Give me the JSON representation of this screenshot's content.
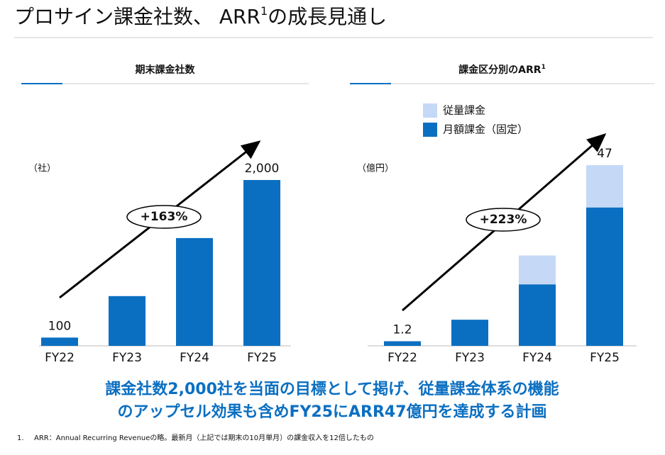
{
  "slide_title": {
    "before": "プロサイン課金社数、 ARR",
    "sup": "1",
    "after": "の成長見通し"
  },
  "chart_data": [
    {
      "type": "bar",
      "title": "期末課金社数",
      "unit": "（社）",
      "growth": "+163%",
      "categories": [
        "FY22",
        "FY23",
        "FY24",
        "FY25"
      ],
      "values": [
        100,
        600,
        1300,
        2000
      ],
      "value_labels": [
        "100",
        null,
        null,
        "2,000"
      ],
      "color": "#0b6fc1",
      "ylim": [
        0,
        2000
      ]
    },
    {
      "type": "stacked_bar",
      "title": "課金区分別のARR",
      "title_sup": "1",
      "unit": "（億円）",
      "growth": "+223%",
      "categories": [
        "FY22",
        "FY23",
        "FY24",
        "FY25"
      ],
      "series": [
        {
          "name": "月額課金（固定）",
          "color": "#0b6fc1",
          "values": [
            1.2,
            6.8,
            16,
            36
          ]
        },
        {
          "name": "従量課金",
          "color": "#c5d9f7",
          "values": [
            0,
            0,
            7.5,
            11
          ]
        }
      ],
      "totals": [
        1.2,
        null,
        null,
        47
      ],
      "ylim": [
        0,
        47
      ]
    }
  ],
  "message": [
    "課金社数2,000社を当面の目標として掲げ、従量課金体系の機能",
    "のアップセル効果も含めFY25にARR47億円を達成する計画"
  ],
  "footnote": {
    "marker": "1.",
    "text": "ARR：Annual Recurring Revenueの略。最新月（上記では期末の10月単月）の課金収入を12倍したもの"
  }
}
